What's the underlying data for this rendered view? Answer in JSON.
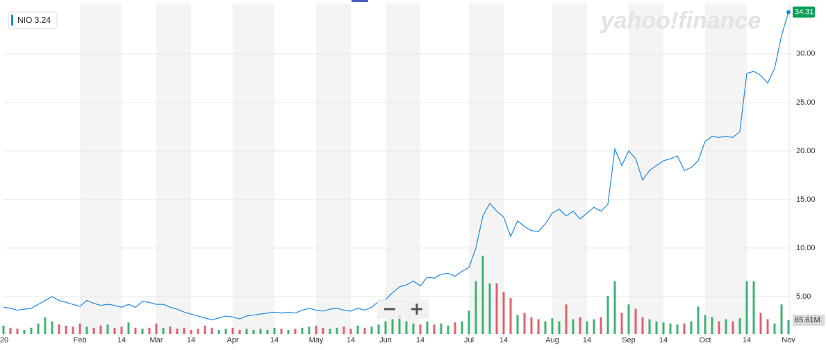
{
  "chart_data": {
    "type": "line",
    "legend": "NIO 3.24",
    "watermark": "yahoo!finance",
    "series": [
      {
        "name": "NIO",
        "color": "#1e88e5",
        "values": [
          3.9,
          3.8,
          3.6,
          3.7,
          3.8,
          4.2,
          4.6,
          5.0,
          4.6,
          4.4,
          4.2,
          4.0,
          4.6,
          4.3,
          4.1,
          4.2,
          4.1,
          3.9,
          4.2,
          3.9,
          4.5,
          4.4,
          4.2,
          4.2,
          3.9,
          3.7,
          3.4,
          3.2,
          3.0,
          2.8,
          2.6,
          2.8,
          3.0,
          2.9,
          2.7,
          3.0,
          3.1,
          3.2,
          3.3,
          3.4,
          3.3,
          3.4,
          3.3,
          3.6,
          3.8,
          3.6,
          3.5,
          3.7,
          3.8,
          3.6,
          3.5,
          3.8,
          3.6,
          3.9,
          4.5,
          4.7,
          5.4,
          6.0,
          6.2,
          6.6,
          6.1,
          7.0,
          6.9,
          7.3,
          7.4,
          7.1,
          7.6,
          8.0,
          10.0,
          13.3,
          14.6,
          13.8,
          13.2,
          11.2,
          12.8,
          12.2,
          11.8,
          11.7,
          12.5,
          13.6,
          14.0,
          13.3,
          13.8,
          13.0,
          13.6,
          14.2,
          13.8,
          14.5,
          20.2,
          18.5,
          20.0,
          19.2,
          17.0,
          18.0,
          18.5,
          19.0,
          19.2,
          19.5,
          18.0,
          18.3,
          19.0,
          21.0,
          21.5,
          21.4,
          21.5,
          21.4,
          22.0,
          28.0,
          28.2,
          27.8,
          27.0,
          28.5,
          31.9,
          34.31
        ],
        "last_color": "#0aa05a"
      }
    ],
    "volume": {
      "up_color": "#3cb371",
      "down_color": "#e0606e",
      "ylim": [
        0,
        400
      ],
      "values": [
        40,
        30,
        25,
        20,
        30,
        50,
        80,
        60,
        45,
        40,
        35,
        50,
        35,
        30,
        40,
        45,
        30,
        35,
        55,
        30,
        25,
        30,
        50,
        30,
        35,
        25,
        30,
        20,
        25,
        40,
        30,
        20,
        25,
        30,
        20,
        25,
        20,
        25,
        20,
        30,
        25,
        20,
        25,
        30,
        35,
        40,
        30,
        25,
        30,
        35,
        25,
        40,
        30,
        35,
        45,
        60,
        70,
        90,
        60,
        50,
        45,
        60,
        45,
        50,
        40,
        55,
        60,
        110,
        250,
        370,
        240,
        240,
        200,
        170,
        90,
        100,
        80,
        70,
        60,
        75,
        60,
        140,
        70,
        80,
        60,
        70,
        80,
        180,
        250,
        100,
        140,
        120,
        80,
        70,
        60,
        55,
        50,
        45,
        50,
        60,
        130,
        90,
        80,
        60,
        70,
        60,
        75,
        250,
        250,
        100,
        70,
        50,
        140,
        65.61
      ],
      "value_labels": [
        null,
        null,
        null,
        null,
        null,
        null,
        null,
        null,
        null,
        null,
        null,
        null,
        null,
        null,
        null,
        null,
        null,
        null,
        null,
        null,
        null,
        null,
        null,
        null,
        null,
        null,
        null,
        null,
        null,
        null,
        null,
        null,
        null,
        null,
        null,
        null,
        null,
        null,
        null,
        null,
        null,
        null,
        null,
        null,
        null,
        null,
        null,
        null,
        null,
        null,
        null,
        null,
        null,
        null,
        null,
        null,
        null,
        null,
        null,
        null,
        null,
        null,
        null,
        null,
        null,
        null,
        null,
        null,
        null,
        null,
        null,
        null,
        null,
        null,
        null,
        null,
        null,
        null,
        null,
        null,
        null,
        null,
        null,
        null,
        null,
        null,
        null,
        null,
        null,
        null,
        null,
        null,
        null,
        null,
        null,
        null,
        null,
        null,
        null,
        null,
        null,
        null,
        null,
        null,
        null,
        null,
        null,
        null,
        null,
        null,
        null,
        null,
        null,
        "65.61M"
      ]
    },
    "ylim": [
      1.14,
      35.2
    ],
    "yticks": [
      {
        "value": 5,
        "label": "5.00"
      },
      {
        "value": 10,
        "label": "10.00"
      },
      {
        "value": 15,
        "label": "15.00"
      },
      {
        "value": 20,
        "label": "20.00"
      },
      {
        "value": 25,
        "label": "25.00"
      },
      {
        "value": 30,
        "label": "30.00"
      }
    ],
    "xticks": [
      {
        "value": 0,
        "label": "'20"
      },
      {
        "value": 11,
        "label": "Feb"
      },
      {
        "value": 17,
        "label": "14"
      },
      {
        "value": 22,
        "label": "Mar"
      },
      {
        "value": 27,
        "label": "14"
      },
      {
        "value": 33,
        "label": "Apr"
      },
      {
        "value": 39,
        "label": "14"
      },
      {
        "value": 45,
        "label": "May"
      },
      {
        "value": 50,
        "label": "14"
      },
      {
        "value": 55,
        "label": "Jun"
      },
      {
        "value": 60,
        "label": "14"
      },
      {
        "value": 67,
        "label": "Jul"
      },
      {
        "value": 72,
        "label": "14"
      },
      {
        "value": 79,
        "label": "Aug"
      },
      {
        "value": 84,
        "label": "14"
      },
      {
        "value": 90,
        "label": "Sep"
      },
      {
        "value": 95,
        "label": "14"
      },
      {
        "value": 101,
        "label": "Oct"
      },
      {
        "value": 107,
        "label": "14"
      },
      {
        "value": 113,
        "label": "Nov"
      }
    ],
    "grid": true
  }
}
